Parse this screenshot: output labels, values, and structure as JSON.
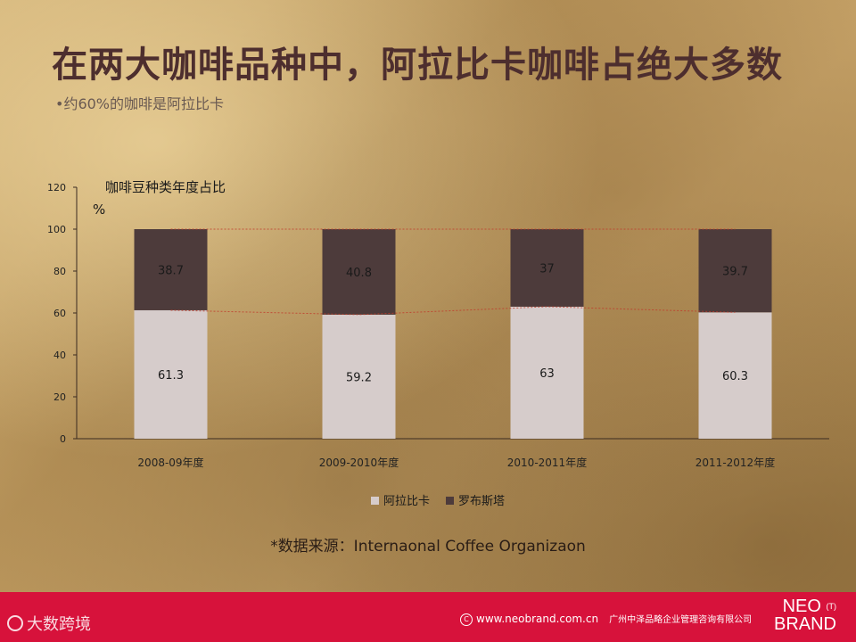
{
  "page": {
    "title": "在两大咖啡品种中，阿拉比卡咖啡占绝大多数",
    "subtitle": "•约60%的咖啡是阿拉比卡",
    "source": "*数据来源：Internaonal Coffee Organizaon"
  },
  "footer": {
    "left_logo": "大数跨境",
    "url": "www.neobrand.com.cn",
    "company": "广州中泽品略企业管理咨询有限公司",
    "brand_line1": "NEO",
    "brand_line2": "BRAND",
    "brand_mark": "(T)"
  },
  "chart_data": {
    "type": "bar",
    "stacked": true,
    "title": "咖啡豆种类年度占比",
    "ylabel": "%",
    "ylim": [
      0,
      120
    ],
    "yticks": [
      0,
      20,
      40,
      60,
      80,
      100,
      120
    ],
    "categories": [
      "2008-09年度",
      "2009-2010年度",
      "2010-2011年度",
      "2011-2012年度"
    ],
    "series": [
      {
        "name": "阿拉比卡",
        "values": [
          61.3,
          59.2,
          63,
          60.3
        ],
        "labels": [
          "61.3",
          "59.2",
          "63",
          "60.3"
        ],
        "color": "#d6cccb"
      },
      {
        "name": "罗布斯塔",
        "values": [
          38.7,
          40.8,
          37,
          39.7
        ],
        "labels": [
          "38.7",
          "40.8",
          "37",
          "39.7"
        ],
        "color": "#4d3b3b"
      }
    ],
    "legend_position": "bottom",
    "grid": false,
    "series_lines": true
  }
}
